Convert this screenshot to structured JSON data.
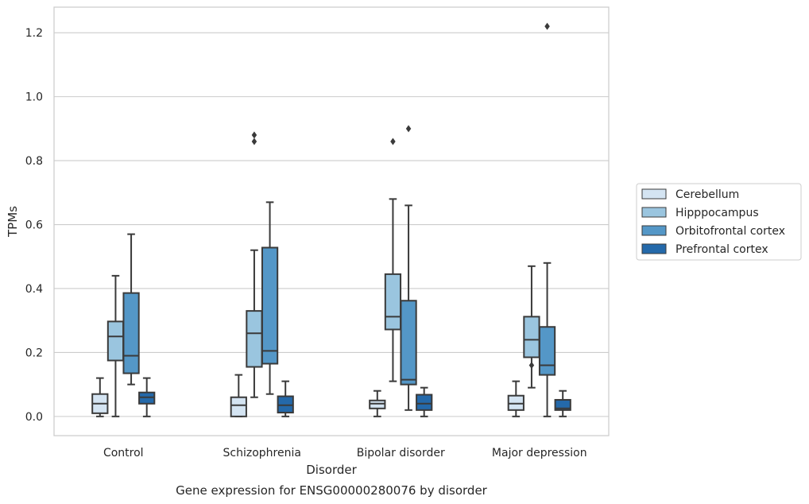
{
  "chart_data": {
    "type": "box",
    "title": "Gene expression for ENSG00000280076 by disorder",
    "xlabel": "Disorder",
    "ylabel": "TPMs",
    "ylim": [
      -0.06,
      1.28
    ],
    "yticks": [
      0.0,
      0.2,
      0.4,
      0.6,
      0.8,
      1.0,
      1.2
    ],
    "ytick_labels": [
      "0.0",
      "0.2",
      "0.4",
      "0.6",
      "0.8",
      "1.0",
      "1.2"
    ],
    "grid": "horizontal",
    "legend_position": "right",
    "categories": [
      "Control",
      "Schizophrenia",
      "Bipolar disorder",
      "Major depression"
    ],
    "series": [
      {
        "name": "Cerebellum",
        "color": "#d4e4f2",
        "boxes": [
          {
            "whislo": 0.0,
            "q1": 0.01,
            "med": 0.04,
            "q3": 0.07,
            "whishi": 0.12,
            "fliers": []
          },
          {
            "whislo": 0.0,
            "q1": 0.0,
            "med": 0.035,
            "q3": 0.06,
            "whishi": 0.13,
            "fliers": []
          },
          {
            "whislo": 0.0,
            "q1": 0.025,
            "med": 0.04,
            "q3": 0.05,
            "whishi": 0.08,
            "fliers": []
          },
          {
            "whislo": 0.0,
            "q1": 0.02,
            "med": 0.04,
            "q3": 0.065,
            "whishi": 0.11,
            "fliers": []
          }
        ]
      },
      {
        "name": "Hipppocampus",
        "color": "#9ac5df",
        "boxes": [
          {
            "whislo": 0.0,
            "q1": 0.175,
            "med": 0.25,
            "q3": 0.297,
            "whishi": 0.44,
            "fliers": []
          },
          {
            "whislo": 0.06,
            "q1": 0.155,
            "med": 0.26,
            "q3": 0.33,
            "whishi": 0.52,
            "fliers": [
              0.86,
              0.88
            ]
          },
          {
            "whislo": 0.11,
            "q1": 0.272,
            "med": 0.312,
            "q3": 0.445,
            "whishi": 0.68,
            "fliers": [
              0.86
            ]
          },
          {
            "whislo": 0.09,
            "q1": 0.185,
            "med": 0.24,
            "q3": 0.312,
            "whishi": 0.47,
            "fliers": [
              0.16
            ]
          }
        ]
      },
      {
        "name": "Orbitofrontal cortex",
        "color": "#5497c7",
        "boxes": [
          {
            "whislo": 0.1,
            "q1": 0.135,
            "med": 0.19,
            "q3": 0.386,
            "whishi": 0.57,
            "fliers": []
          },
          {
            "whislo": 0.07,
            "q1": 0.165,
            "med": 0.205,
            "q3": 0.528,
            "whishi": 0.67,
            "fliers": []
          },
          {
            "whislo": 0.02,
            "q1": 0.1,
            "med": 0.115,
            "q3": 0.362,
            "whishi": 0.66,
            "fliers": [
              0.9
            ]
          },
          {
            "whislo": 0.0,
            "q1": 0.13,
            "med": 0.16,
            "q3": 0.28,
            "whishi": 0.48,
            "fliers": [
              1.22
            ]
          }
        ]
      },
      {
        "name": "Prefrontal cortex",
        "color": "#2469aa",
        "boxes": [
          {
            "whislo": 0.0,
            "q1": 0.04,
            "med": 0.06,
            "q3": 0.075,
            "whishi": 0.12,
            "fliers": []
          },
          {
            "whislo": 0.0,
            "q1": 0.012,
            "med": 0.035,
            "q3": 0.063,
            "whishi": 0.11,
            "fliers": []
          },
          {
            "whislo": 0.0,
            "q1": 0.02,
            "med": 0.04,
            "q3": 0.068,
            "whishi": 0.09,
            "fliers": []
          },
          {
            "whislo": 0.0,
            "q1": 0.02,
            "med": 0.025,
            "q3": 0.052,
            "whishi": 0.08,
            "fliers": []
          }
        ]
      }
    ]
  }
}
